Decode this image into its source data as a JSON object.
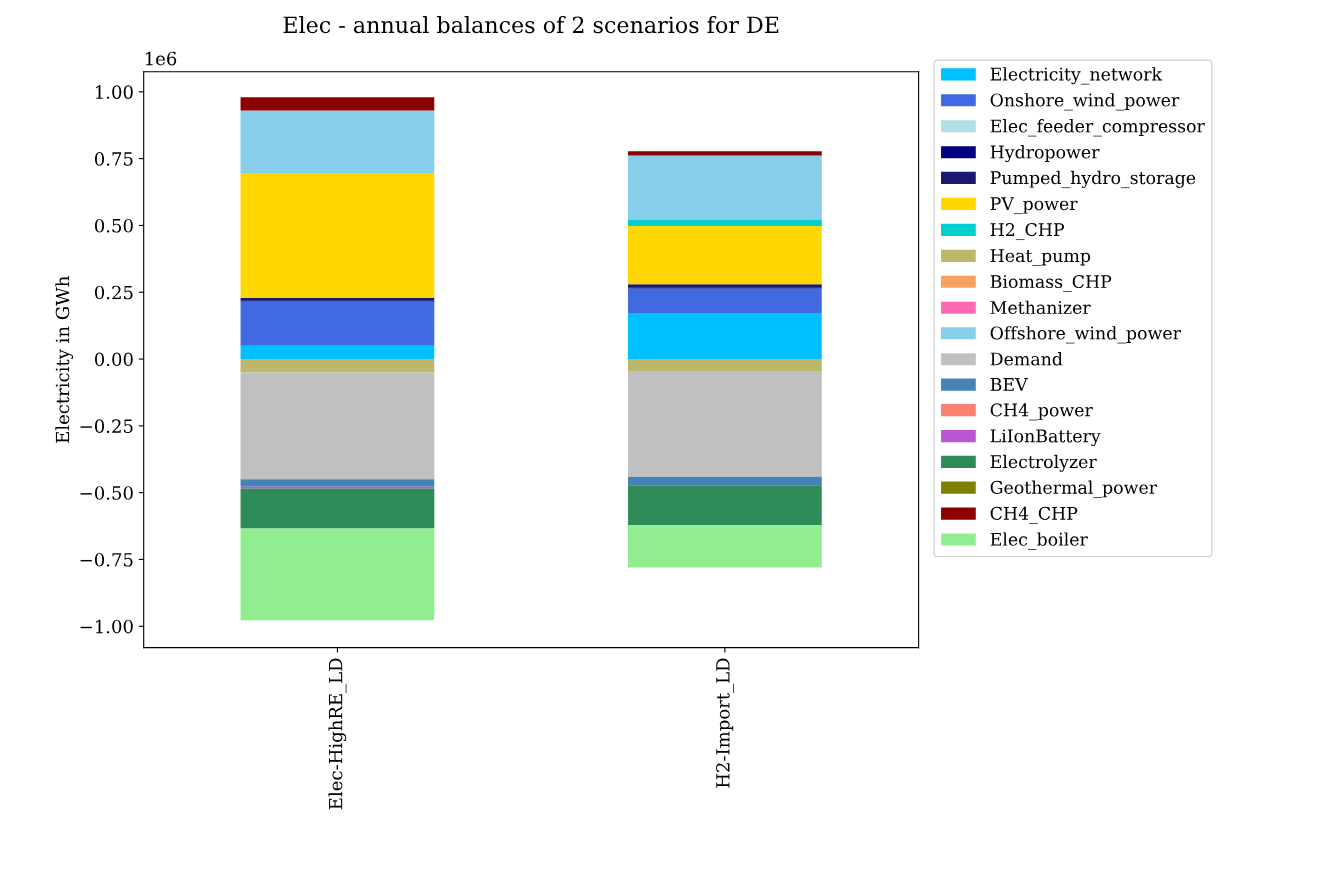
{
  "chart_data": {
    "type": "bar",
    "title": "Elec - annual balances of 2 scenarios for DE",
    "ylabel": "Electricity in GWh",
    "annotations": [
      "1e6"
    ],
    "categories": [
      "Elec-HighRE_LD",
      "H2-Import_LD"
    ],
    "stacked": true,
    "legend": "right",
    "grid": false,
    "ylim": [
      -1.08,
      1.075
    ],
    "yticks": [
      {
        "value": -1,
        "label": "−1.00"
      },
      {
        "value": -0.75,
        "label": "−0.75"
      },
      {
        "value": -0.5,
        "label": "−0.50"
      },
      {
        "value": -0.25,
        "label": "−0.25"
      },
      {
        "value": 0,
        "label": "0.00"
      },
      {
        "value": 0.25,
        "label": "0.25"
      },
      {
        "value": 0.5,
        "label": "0.50"
      },
      {
        "value": 0.75,
        "label": "0.75"
      },
      {
        "value": 1,
        "label": "1.00"
      }
    ],
    "series": [
      {
        "name": "Electricity_network",
        "color": "#00bfff",
        "values": [
          0.05,
          0.172
        ]
      },
      {
        "name": "Onshore_wind_power",
        "color": "#4169e1",
        "values": [
          0.165,
          0.092
        ]
      },
      {
        "name": "Elec_feeder_compressor",
        "color": "#b0e0e6",
        "values": [
          0,
          0
        ]
      },
      {
        "name": "Hydropower",
        "color": "#000080",
        "values": [
          0.005,
          0.005
        ]
      },
      {
        "name": "Pumped_hydro_storage",
        "color": "#191970",
        "values": [
          0.008,
          0.011
        ]
      },
      {
        "name": "PV_power",
        "color": "#ffd700",
        "values": [
          0.465,
          0.218
        ]
      },
      {
        "name": "H2_CHP",
        "color": "#00ced1",
        "values": [
          0,
          0.022
        ]
      },
      {
        "name": "Heat_pump",
        "color": "#bdb76b",
        "values": [
          -0.05,
          -0.045
        ]
      },
      {
        "name": "Biomass_CHP",
        "color": "#f4a460",
        "values": [
          0,
          0
        ]
      },
      {
        "name": "Methanizer",
        "color": "#ff69b4",
        "values": [
          0,
          0
        ]
      },
      {
        "name": "Offshore_wind_power",
        "color": "#87ceeb",
        "values": [
          0.237,
          0.242
        ]
      },
      {
        "name": "Demand",
        "color": "#c0c0c0",
        "values": [
          -0.4,
          -0.395
        ]
      },
      {
        "name": "BEV",
        "color": "#4682b4",
        "values": [
          -0.028,
          -0.032
        ]
      },
      {
        "name": "CH4_power",
        "color": "#fa8072",
        "values": [
          0,
          0
        ]
      },
      {
        "name": "LiIonBattery",
        "color": "#ba55d3",
        "values": [
          -0.006,
          0
        ]
      },
      {
        "name": "Electrolyzer",
        "color": "#2e8b57",
        "values": [
          -0.15,
          -0.15
        ]
      },
      {
        "name": "Geothermal_power",
        "color": "#808000",
        "values": [
          0,
          0
        ]
      },
      {
        "name": "CH4_CHP",
        "color": "#8b0000",
        "values": [
          0.05,
          0.016
        ]
      },
      {
        "name": "Elec_boiler",
        "color": "#90ee90",
        "values": [
          -0.343,
          -0.158
        ]
      }
    ]
  }
}
